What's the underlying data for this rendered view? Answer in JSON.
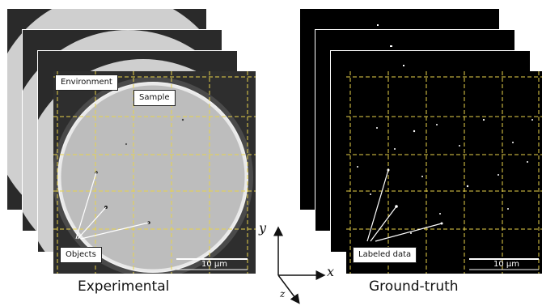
{
  "experimental": {
    "caption": "Experimental",
    "label_environment": "Environment",
    "label_sample": "Sample",
    "label_objects": "Objects",
    "scale_bar": "10 µm"
  },
  "ground_truth": {
    "caption": "Ground-truth",
    "label_labeled_data": "Labeled data",
    "scale_bar": "10 µm"
  },
  "axes": {
    "x": "x",
    "y": "y",
    "z": "z"
  },
  "colors": {
    "grid_line": "#e8d24a",
    "sample_disk": "#b9b9b9",
    "environment": "#3a3a3a",
    "ground_truth_bg": "#000000",
    "annotation": "#ffffff"
  },
  "icons": {
    "arrow": "arrow-icon"
  }
}
